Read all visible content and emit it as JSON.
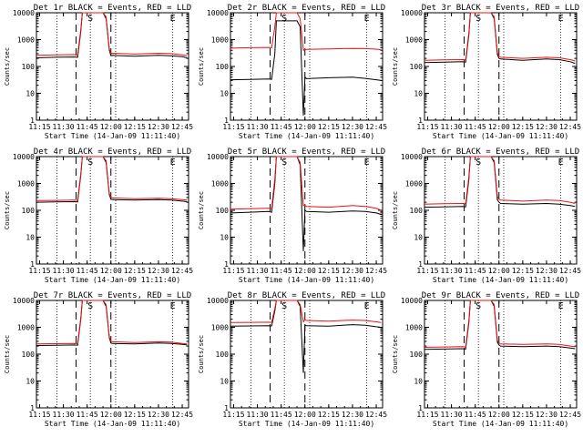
{
  "colors": {
    "events": "#000000",
    "lld": "#ee1111",
    "axis": "#000000"
  },
  "chart_data": [
    {
      "type": "line",
      "title": "Det 1r BLACK = Events, RED = LLD",
      "xlabel": "Start Time (14-Jan-09 11:11:40)",
      "ylabel": "Counts/sec",
      "yscale": "log",
      "ylim": [
        1,
        10000
      ],
      "xlim": [
        "11:13",
        "12:49"
      ],
      "x_ticks": [
        "11:15",
        "11:30",
        "11:45",
        "12:00",
        "12:15",
        "12:30",
        "12:45"
      ],
      "y_ticks": [
        "1",
        "10",
        "100",
        "1000",
        "10000"
      ],
      "dotted_lines": [
        "11:26",
        "11:47",
        "12:03",
        "12:39"
      ],
      "dashed_lines": [
        "11:38",
        "12:00"
      ],
      "markers": [
        {
          "label": "S",
          "time": "11:47"
        },
        {
          "label": "E",
          "time": "12:39"
        }
      ],
      "x": [
        "11:13",
        "11:25",
        "11:37",
        "11:39",
        "11:41",
        "11:42",
        "11:55",
        "11:57",
        "11:59",
        "12:00",
        "12:01",
        "12:15",
        "12:30",
        "12:38",
        "12:45",
        "12:48"
      ],
      "series": [
        {
          "name": "Events",
          "values": [
            210,
            220,
            225,
            220,
            2000,
            10000,
            10000,
            6000,
            400,
            250,
            260,
            240,
            260,
            250,
            230,
            210
          ]
        },
        {
          "name": "LLD",
          "values": [
            260,
            270,
            275,
            270,
            2400,
            10000,
            10000,
            7000,
            450,
            300,
            310,
            290,
            310,
            300,
            270,
            250
          ]
        }
      ]
    },
    {
      "type": "line",
      "title": "Det 2r BLACK = Events, RED = LLD",
      "xlabel": "Start Time (14-Jan-09 11:11:40)",
      "ylabel": "Counts/sec",
      "yscale": "log",
      "ylim": [
        1,
        10000
      ],
      "xlim": [
        "11:13",
        "12:49"
      ],
      "x_ticks": [
        "11:15",
        "11:30",
        "11:45",
        "12:00",
        "12:15",
        "12:30",
        "12:45"
      ],
      "y_ticks": [
        "1",
        "10",
        "100",
        "1000",
        "10000"
      ],
      "dotted_lines": [
        "11:26",
        "11:47",
        "12:03",
        "12:39"
      ],
      "dashed_lines": [
        "11:38",
        "12:00"
      ],
      "markers": [
        {
          "label": "S",
          "time": "11:47"
        },
        {
          "label": "E",
          "time": "12:39"
        }
      ],
      "x": [
        "11:13",
        "11:25",
        "11:37",
        "11:39",
        "11:41",
        "11:42",
        "11:55",
        "11:57",
        "11:59",
        "12:00",
        "12:01",
        "12:15",
        "12:30",
        "12:38",
        "12:45",
        "12:48"
      ],
      "series": [
        {
          "name": "Events",
          "values": [
            32,
            33,
            34,
            33,
            300,
            5000,
            5000,
            3000,
            1.5,
            40,
            35,
            38,
            40,
            36,
            32,
            30
          ]
        },
        {
          "name": "LLD",
          "values": [
            480,
            500,
            510,
            500,
            3000,
            10000,
            10000,
            6000,
            400,
            420,
            430,
            450,
            470,
            460,
            440,
            420
          ]
        }
      ]
    },
    {
      "type": "line",
      "title": "Det 3r BLACK = Events, RED = LLD",
      "xlabel": "Start Time (14-Jan-09 11:11:40)",
      "ylabel": "Counts/sec",
      "yscale": "log",
      "ylim": [
        1,
        10000
      ],
      "xlim": [
        "11:13",
        "12:49"
      ],
      "x_ticks": [
        "11:15",
        "11:30",
        "11:45",
        "12:00",
        "12:15",
        "12:30",
        "12:45"
      ],
      "y_ticks": [
        "1",
        "10",
        "100",
        "1000",
        "10000"
      ],
      "dotted_lines": [
        "11:26",
        "11:47",
        "12:03",
        "12:39"
      ],
      "dashed_lines": [
        "11:38",
        "12:00"
      ],
      "markers": [
        {
          "label": "S",
          "time": "11:47"
        },
        {
          "label": "E",
          "time": "12:39"
        }
      ],
      "x": [
        "11:13",
        "11:25",
        "11:37",
        "11:39",
        "11:41",
        "11:42",
        "11:55",
        "11:57",
        "11:59",
        "12:00",
        "12:01",
        "12:15",
        "12:30",
        "12:38",
        "12:45",
        "12:48"
      ],
      "series": [
        {
          "name": "Events",
          "values": [
            140,
            145,
            150,
            145,
            1500,
            10000,
            10000,
            6000,
            280,
            200,
            190,
            170,
            190,
            180,
            150,
            130
          ]
        },
        {
          "name": "LLD",
          "values": [
            170,
            175,
            180,
            175,
            1800,
            10000,
            10000,
            7000,
            330,
            240,
            220,
            200,
            220,
            210,
            180,
            160
          ]
        }
      ]
    },
    {
      "type": "line",
      "title": "Det 4r BLACK = Events, RED = LLD",
      "xlabel": "Start Time (14-Jan-09 11:11:40)",
      "ylabel": "Counts/sec",
      "yscale": "log",
      "ylim": [
        1,
        10000
      ],
      "xlim": [
        "11:13",
        "12:49"
      ],
      "x_ticks": [
        "11:15",
        "11:30",
        "11:45",
        "12:00",
        "12:15",
        "12:30",
        "12:45"
      ],
      "y_ticks": [
        "1",
        "10",
        "100",
        "1000",
        "10000"
      ],
      "dotted_lines": [
        "11:26",
        "11:47",
        "12:03",
        "12:39"
      ],
      "dashed_lines": [
        "11:38",
        "12:00"
      ],
      "markers": [
        {
          "label": "S",
          "time": "11:47"
        },
        {
          "label": "E",
          "time": "12:39"
        }
      ],
      "x": [
        "11:13",
        "11:25",
        "11:37",
        "11:39",
        "11:41",
        "11:42",
        "11:55",
        "11:57",
        "11:59",
        "12:00",
        "12:01",
        "12:15",
        "12:30",
        "12:38",
        "12:45",
        "12:48"
      ],
      "series": [
        {
          "name": "Events",
          "values": [
            200,
            205,
            210,
            205,
            2000,
            10000,
            10000,
            6000,
            380,
            260,
            250,
            240,
            250,
            240,
            220,
            210
          ]
        },
        {
          "name": "LLD",
          "values": [
            230,
            235,
            240,
            235,
            2300,
            10000,
            10000,
            7000,
            420,
            300,
            290,
            270,
            280,
            270,
            250,
            240
          ]
        }
      ]
    },
    {
      "type": "line",
      "title": "Det 5r BLACK = Events, RED = LLD",
      "xlabel": "Start Time (14-Jan-09 11:11:40)",
      "ylabel": "Counts/sec",
      "yscale": "log",
      "ylim": [
        1,
        10000
      ],
      "xlim": [
        "11:13",
        "12:49"
      ],
      "x_ticks": [
        "11:15",
        "11:30",
        "11:45",
        "12:00",
        "12:15",
        "12:30",
        "12:45"
      ],
      "y_ticks": [
        "1",
        "10",
        "100",
        "1000",
        "10000"
      ],
      "dotted_lines": [
        "11:26",
        "11:47",
        "12:03",
        "12:39"
      ],
      "dashed_lines": [
        "11:38",
        "12:00"
      ],
      "markers": [
        {
          "label": "S",
          "time": "11:47"
        },
        {
          "label": "E",
          "time": "12:39"
        }
      ],
      "x": [
        "11:13",
        "11:25",
        "11:37",
        "11:39",
        "11:41",
        "11:42",
        "11:55",
        "11:57",
        "11:59",
        "12:00",
        "12:01",
        "12:15",
        "12:30",
        "12:38",
        "12:45",
        "12:48"
      ],
      "series": [
        {
          "name": "Events",
          "values": [
            80,
            85,
            90,
            85,
            1000,
            10000,
            10000,
            5000,
            3,
            100,
            90,
            85,
            95,
            90,
            80,
            70
          ]
        },
        {
          "name": "LLD",
          "values": [
            110,
            115,
            120,
            115,
            1500,
            10000,
            10000,
            6000,
            150,
            150,
            140,
            130,
            150,
            140,
            120,
            100
          ]
        }
      ]
    },
    {
      "type": "line",
      "title": "Det 6r BLACK = Events, RED = LLD",
      "xlabel": "Start Time (14-Jan-09 11:11:40)",
      "ylabel": "Counts/sec",
      "yscale": "log",
      "ylim": [
        1,
        10000
      ],
      "xlim": [
        "11:13",
        "12:49"
      ],
      "x_ticks": [
        "11:15",
        "11:30",
        "11:45",
        "12:00",
        "12:15",
        "12:30",
        "12:45"
      ],
      "y_ticks": [
        "1",
        "10",
        "100",
        "1000",
        "10000"
      ],
      "dotted_lines": [
        "11:26",
        "11:47",
        "12:03",
        "12:39"
      ],
      "dashed_lines": [
        "11:38",
        "12:00"
      ],
      "markers": [
        {
          "label": "S",
          "time": "11:47"
        },
        {
          "label": "E",
          "time": "12:39"
        }
      ],
      "x": [
        "11:13",
        "11:25",
        "11:37",
        "11:39",
        "11:41",
        "11:42",
        "11:55",
        "11:57",
        "11:59",
        "12:00",
        "12:01",
        "12:15",
        "12:30",
        "12:38",
        "12:45",
        "12:48"
      ],
      "series": [
        {
          "name": "Events",
          "values": [
            130,
            135,
            140,
            135,
            1400,
            10000,
            10000,
            6000,
            250,
            200,
            180,
            170,
            180,
            170,
            150,
            140
          ]
        },
        {
          "name": "LLD",
          "values": [
            170,
            175,
            180,
            175,
            1800,
            10000,
            10000,
            7000,
            330,
            260,
            240,
            220,
            240,
            230,
            200,
            180
          ]
        }
      ]
    },
    {
      "type": "line",
      "title": "Det 7r BLACK = Events, RED = LLD",
      "xlabel": "Start Time (14-Jan-09 11:11:40)",
      "ylabel": "Counts/sec",
      "yscale": "log",
      "ylim": [
        1,
        10000
      ],
      "xlim": [
        "11:13",
        "12:49"
      ],
      "x_ticks": [
        "11:15",
        "11:30",
        "11:45",
        "12:00",
        "12:15",
        "12:30",
        "12:45"
      ],
      "y_ticks": [
        "1",
        "10",
        "100",
        "1000",
        "10000"
      ],
      "dotted_lines": [
        "11:26",
        "11:47",
        "12:03",
        "12:39"
      ],
      "dashed_lines": [
        "11:38",
        "12:00"
      ],
      "markers": [
        {
          "label": "S",
          "time": "11:47"
        },
        {
          "label": "E",
          "time": "12:39"
        }
      ],
      "x": [
        "11:13",
        "11:25",
        "11:37",
        "11:39",
        "11:41",
        "11:42",
        "11:55",
        "11:57",
        "11:59",
        "12:00",
        "12:01",
        "12:15",
        "12:30",
        "12:38",
        "12:45",
        "12:48"
      ],
      "series": [
        {
          "name": "Events",
          "values": [
            210,
            215,
            220,
            215,
            2000,
            10000,
            10000,
            6000,
            400,
            260,
            250,
            240,
            260,
            250,
            230,
            220
          ]
        },
        {
          "name": "LLD",
          "values": [
            240,
            245,
            250,
            245,
            2300,
            10000,
            10000,
            7000,
            440,
            300,
            290,
            270,
            290,
            280,
            250,
            240
          ]
        }
      ]
    },
    {
      "type": "line",
      "title": "Det 8r BLACK = Events, RED = LLD",
      "xlabel": "Start Time (14-Jan-09 11:11:40)",
      "ylabel": "Counts/sec",
      "yscale": "log",
      "ylim": [
        1,
        10000
      ],
      "xlim": [
        "11:13",
        "12:49"
      ],
      "x_ticks": [
        "11:15",
        "11:30",
        "11:45",
        "12:00",
        "12:15",
        "12:30",
        "12:45"
      ],
      "y_ticks": [
        "1",
        "10",
        "100",
        "1000",
        "10000"
      ],
      "dotted_lines": [
        "11:26",
        "11:47",
        "12:03",
        "12:39"
      ],
      "dashed_lines": [
        "11:38",
        "12:00"
      ],
      "markers": [
        {
          "label": "S",
          "time": "11:47"
        },
        {
          "label": "E",
          "time": "12:39"
        }
      ],
      "x": [
        "11:13",
        "11:25",
        "11:37",
        "11:39",
        "11:41",
        "11:42",
        "11:55",
        "11:57",
        "11:59",
        "12:00",
        "12:01",
        "12:15",
        "12:30",
        "12:38",
        "12:45",
        "12:48"
      ],
      "series": [
        {
          "name": "Events",
          "values": [
            1100,
            1120,
            1150,
            1120,
            4000,
            10000,
            10000,
            6000,
            20,
            1200,
            1150,
            1100,
            1250,
            1200,
            1050,
            1000
          ]
        },
        {
          "name": "LLD",
          "values": [
            1500,
            1520,
            1550,
            1520,
            5000,
            10000,
            10000,
            7000,
            1600,
            1900,
            1800,
            1700,
            1850,
            1800,
            1600,
            1500
          ]
        }
      ]
    },
    {
      "type": "line",
      "title": "Det 9r BLACK = Events, RED = LLD",
      "xlabel": "Start Time (14-Jan-09 11:11:40)",
      "ylabel": "Counts/sec",
      "yscale": "log",
      "ylim": [
        1,
        10000
      ],
      "xlim": [
        "11:13",
        "12:49"
      ],
      "x_ticks": [
        "11:15",
        "11:30",
        "11:45",
        "12:00",
        "12:15",
        "12:30",
        "12:45"
      ],
      "y_ticks": [
        "1",
        "10",
        "100",
        "1000",
        "10000"
      ],
      "dotted_lines": [
        "11:26",
        "11:47",
        "12:03",
        "12:39"
      ],
      "dashed_lines": [
        "11:38",
        "12:00"
      ],
      "markers": [
        {
          "label": "S",
          "time": "11:47"
        },
        {
          "label": "E",
          "time": "12:39"
        }
      ],
      "x": [
        "11:13",
        "11:25",
        "11:37",
        "11:39",
        "11:41",
        "11:42",
        "11:55",
        "11:57",
        "11:59",
        "12:00",
        "12:01",
        "12:15",
        "12:30",
        "12:38",
        "12:45",
        "12:48"
      ],
      "series": [
        {
          "name": "Events",
          "values": [
            150,
            155,
            160,
            155,
            1500,
            10000,
            10000,
            6000,
            280,
            220,
            200,
            190,
            200,
            190,
            170,
            160
          ]
        },
        {
          "name": "LLD",
          "values": [
            180,
            185,
            190,
            185,
            1800,
            10000,
            10000,
            7000,
            330,
            260,
            240,
            230,
            240,
            230,
            200,
            190
          ]
        }
      ]
    }
  ]
}
